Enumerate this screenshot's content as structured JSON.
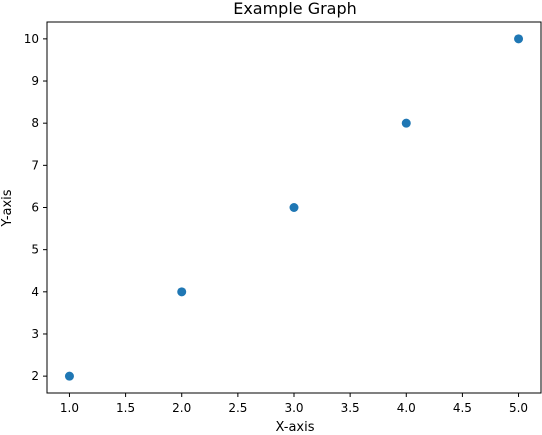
{
  "chart_data": {
    "type": "scatter",
    "title": "Example Graph",
    "xlabel": "X-axis",
    "ylabel": "Y-axis",
    "x": [
      1,
      2,
      3,
      4,
      5
    ],
    "y": [
      2,
      4,
      6,
      8,
      10
    ],
    "xlim": [
      0.8,
      5.2
    ],
    "ylim": [
      1.6,
      10.4
    ],
    "xticks": [
      1.0,
      1.5,
      2.0,
      2.5,
      3.0,
      3.5,
      4.0,
      4.5,
      5.0
    ],
    "xtick_labels": [
      "1.0",
      "1.5",
      "2.0",
      "2.5",
      "3.0",
      "3.5",
      "4.0",
      "4.5",
      "5.0"
    ],
    "yticks": [
      2,
      3,
      4,
      5,
      6,
      7,
      8,
      9,
      10
    ],
    "ytick_labels": [
      "2",
      "3",
      "4",
      "5",
      "6",
      "7",
      "8",
      "9",
      "10"
    ],
    "grid": false,
    "marker_color": "#1f77b4",
    "marker": "circle"
  }
}
